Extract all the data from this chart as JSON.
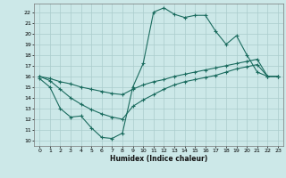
{
  "xlabel": "Humidex (Indice chaleur)",
  "xlim": [
    -0.5,
    23.5
  ],
  "ylim": [
    9.5,
    22.8
  ],
  "xticks": [
    0,
    1,
    2,
    3,
    4,
    5,
    6,
    7,
    8,
    9,
    10,
    11,
    12,
    13,
    14,
    15,
    16,
    17,
    18,
    19,
    20,
    21,
    22,
    23
  ],
  "yticks": [
    10,
    11,
    12,
    13,
    14,
    15,
    16,
    17,
    18,
    19,
    20,
    21,
    22
  ],
  "bg_color": "#cce8e8",
  "grid_color": "#aacccc",
  "line_color": "#1a6b5e",
  "line1_x": [
    0,
    1,
    2,
    3,
    4,
    5,
    6,
    7,
    8,
    9,
    10,
    11,
    12,
    13,
    14,
    15,
    16,
    17,
    18,
    19,
    20,
    21,
    22,
    23
  ],
  "line1_y": [
    15.8,
    15.0,
    13.0,
    12.2,
    12.3,
    11.2,
    10.3,
    10.2,
    10.7,
    15.0,
    17.2,
    22.0,
    22.4,
    21.8,
    21.5,
    21.7,
    21.7,
    20.2,
    19.0,
    19.8,
    18.0,
    16.4,
    16.0,
    16.0
  ],
  "line2_x": [
    0,
    1,
    2,
    3,
    4,
    5,
    6,
    7,
    8,
    9,
    10,
    11,
    12,
    13,
    14,
    15,
    16,
    17,
    18,
    19,
    20,
    21,
    22,
    23
  ],
  "line2_y": [
    16.0,
    15.8,
    15.5,
    15.3,
    15.0,
    14.8,
    14.6,
    14.4,
    14.3,
    14.8,
    15.2,
    15.5,
    15.7,
    16.0,
    16.2,
    16.4,
    16.6,
    16.8,
    17.0,
    17.2,
    17.4,
    17.6,
    16.0,
    16.0
  ],
  "line3_x": [
    0,
    1,
    2,
    3,
    4,
    5,
    6,
    7,
    8,
    9,
    10,
    11,
    12,
    13,
    14,
    15,
    16,
    17,
    18,
    19,
    20,
    21,
    22,
    23
  ],
  "line3_y": [
    16.0,
    15.6,
    14.8,
    14.0,
    13.4,
    12.9,
    12.5,
    12.2,
    12.0,
    13.2,
    13.8,
    14.3,
    14.8,
    15.2,
    15.5,
    15.7,
    15.9,
    16.1,
    16.4,
    16.7,
    16.9,
    17.1,
    16.0,
    16.0
  ]
}
